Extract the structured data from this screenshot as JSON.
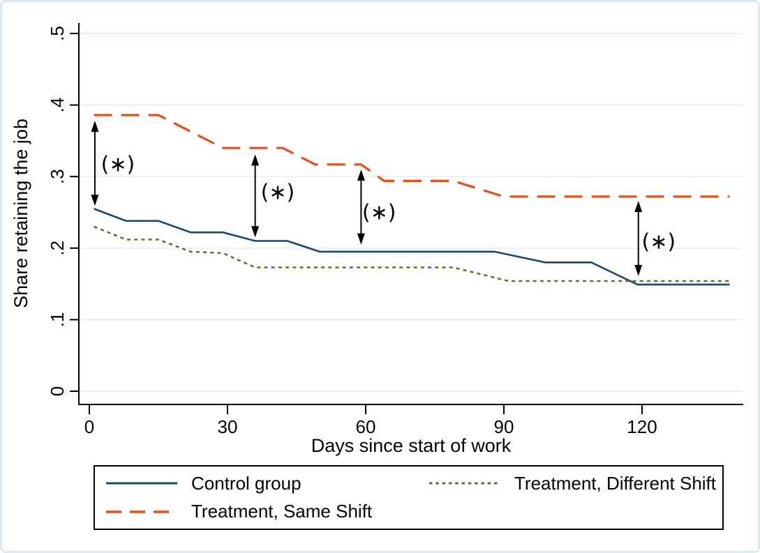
{
  "figure": {
    "background": "#ffffff",
    "frame_color": "#dcebf2",
    "axis_color": "#000000",
    "grid_color": "#e5eef3"
  },
  "chart_data": {
    "type": "line",
    "title": "",
    "xlabel": "Days since start of work",
    "ylabel": "Share retaining the job",
    "xlim": [
      -2.3,
      142
    ],
    "ylim": [
      0,
      0.5
    ],
    "x_ticks": [
      0,
      30,
      60,
      90,
      120
    ],
    "y_ticks": [
      0,
      0.1,
      0.2,
      0.3,
      0.4,
      0.5
    ],
    "y_tick_labels": [
      "0",
      ".1",
      ".2",
      ".3",
      ".4",
      ".5"
    ],
    "grid": "horizontal",
    "legend_position": "bottom",
    "series": [
      {
        "name": "Control group",
        "id": "control-group",
        "color": "#1a476f",
        "style": "solid",
        "width": 2.6,
        "points": [
          [
            1,
            0.255
          ],
          [
            8,
            0.238
          ],
          [
            15,
            0.238
          ],
          [
            22,
            0.222
          ],
          [
            29,
            0.222
          ],
          [
            36,
            0.21
          ],
          [
            43,
            0.21
          ],
          [
            50,
            0.195
          ],
          [
            88,
            0.195
          ],
          [
            99,
            0.18
          ],
          [
            109,
            0.18
          ],
          [
            119,
            0.149
          ],
          [
            139,
            0.149
          ]
        ]
      },
      {
        "name": "Treatment, Same Shift",
        "id": "treatment-same-shift",
        "color": "#f04b16",
        "style": "dashed",
        "width": 3.2,
        "points": [
          [
            1,
            0.386
          ],
          [
            15,
            0.386
          ],
          [
            29,
            0.34
          ],
          [
            42,
            0.34
          ],
          [
            49,
            0.317
          ],
          [
            59,
            0.317
          ],
          [
            64,
            0.294
          ],
          [
            79,
            0.294
          ],
          [
            90,
            0.272
          ],
          [
            139,
            0.272
          ]
        ]
      },
      {
        "name": "Treatment, Different Shift",
        "id": "treatment-different-shift",
        "color": "#5b6e33",
        "style": "dotted",
        "width": 2.6,
        "points": [
          [
            1,
            0.23
          ],
          [
            8,
            0.212
          ],
          [
            15,
            0.212
          ],
          [
            22,
            0.195
          ],
          [
            29,
            0.193
          ],
          [
            36,
            0.173
          ],
          [
            79,
            0.173
          ],
          [
            91,
            0.154
          ],
          [
            139,
            0.154
          ]
        ]
      }
    ],
    "annotations": [
      {
        "type": "double-arrow",
        "day": 1.2,
        "v_top": 0.378,
        "v_bottom": 0.259,
        "label": "(∗)",
        "label_day": 6.2,
        "label_v": 0.318
      },
      {
        "type": "double-arrow",
        "day": 36,
        "v_top": 0.331,
        "v_bottom": 0.215,
        "label": "(∗)",
        "label_day": 40.9,
        "label_v": 0.279
      },
      {
        "type": "double-arrow",
        "day": 59,
        "v_top": 0.31,
        "v_bottom": 0.205,
        "label": "(∗)",
        "label_day": 62.9,
        "label_v": 0.251
      },
      {
        "type": "double-arrow",
        "day": 119.2,
        "v_top": 0.266,
        "v_bottom": 0.161,
        "label": "(∗)",
        "label_day": 123.6,
        "label_v": 0.21
      }
    ]
  },
  "legend": {
    "entries": [
      {
        "label": "Control group",
        "series": 0
      },
      {
        "label": "Treatment, Different Shift",
        "series": 2
      },
      {
        "label": "Treatment, Same Shift",
        "series": 1
      }
    ]
  }
}
